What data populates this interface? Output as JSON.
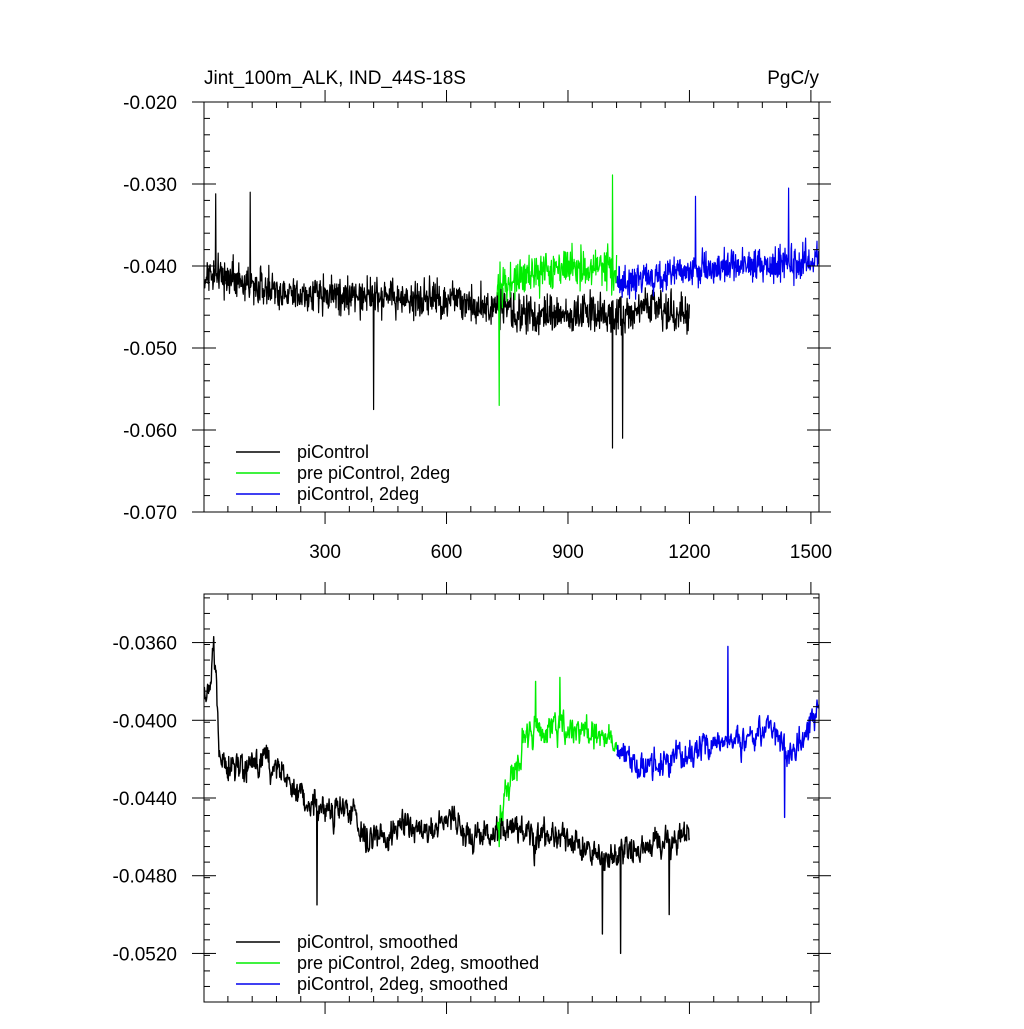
{
  "chart_data": [
    {
      "type": "line",
      "title_left": "Jint_100m_ALK, IND_44S-18S",
      "title_right": "PgC/y",
      "xlim": [
        1,
        1520
      ],
      "ylim": [
        -0.07,
        -0.02
      ],
      "yticks": [
        -0.02,
        -0.03,
        -0.04,
        -0.05,
        -0.06,
        -0.07
      ],
      "ytick_labels": [
        "-0.020",
        "-0.030",
        "-0.040",
        "-0.050",
        "-0.060",
        "-0.070"
      ],
      "xticks": [
        300,
        600,
        900,
        1200,
        1500
      ],
      "xtick_labels": [
        "300",
        "600",
        "900",
        "1200",
        "1500"
      ],
      "legend_position": "bottom-left",
      "series": [
        {
          "name": "piControl",
          "color": "#000000",
          "x_start": 1,
          "x_end": 1200,
          "anchors": [
            [
              1,
              -0.041
            ],
            [
              100,
              -0.042
            ],
            [
              200,
              -0.0435
            ],
            [
              300,
              -0.0435
            ],
            [
              400,
              -0.0435
            ],
            [
              500,
              -0.044
            ],
            [
              600,
              -0.044
            ],
            [
              700,
              -0.045
            ],
            [
              800,
              -0.046
            ],
            [
              900,
              -0.046
            ],
            [
              1000,
              -0.046
            ],
            [
              1100,
              -0.045
            ],
            [
              1200,
              -0.046
            ]
          ],
          "noise_amplitude": 0.0035,
          "min_marks": [
            [
              420,
              -0.0575
            ],
            [
              1010,
              -0.0622
            ],
            [
              1035,
              -0.061
            ]
          ],
          "max_marks": [
            [
              30,
              -0.0312
            ],
            [
              115,
              -0.031
            ]
          ]
        },
        {
          "name": "pre piControl, 2deg",
          "color": "#00ee00",
          "x_start": 725,
          "x_end": 1020,
          "anchors": [
            [
              725,
              -0.043
            ],
            [
              800,
              -0.041
            ],
            [
              900,
              -0.0405
            ],
            [
              1020,
              -0.0405
            ]
          ],
          "noise_amplitude": 0.0038,
          "min_marks": [
            [
              730,
              -0.057
            ]
          ],
          "max_marks": [
            [
              1010,
              -0.0289
            ]
          ]
        },
        {
          "name": "piControl, 2deg",
          "color": "#0000ee",
          "x_start": 1020,
          "x_end": 1520,
          "anchors": [
            [
              1020,
              -0.042
            ],
            [
              1100,
              -0.0415
            ],
            [
              1200,
              -0.0405
            ],
            [
              1300,
              -0.04
            ],
            [
              1400,
              -0.04
            ],
            [
              1520,
              -0.039
            ]
          ],
          "noise_amplitude": 0.0032,
          "min_marks": [],
          "max_marks": [
            [
              1215,
              -0.0315
            ],
            [
              1445,
              -0.0305
            ]
          ]
        }
      ]
    },
    {
      "type": "line",
      "xlim": [
        1,
        1520
      ],
      "ylim": [
        -0.0545,
        -0.0335
      ],
      "yticks": [
        -0.036,
        -0.04,
        -0.044,
        -0.048,
        -0.052
      ],
      "ytick_labels": [
        "-0.0360",
        "-0.0400",
        "-0.0440",
        "-0.0480",
        "-0.0520"
      ],
      "xticks": [
        300,
        600,
        900,
        1200,
        1500
      ],
      "legend_position": "bottom-left",
      "series": [
        {
          "name": "piControl, smoothed",
          "color": "#000000",
          "x_start": 1,
          "x_end": 1200,
          "anchors": [
            [
              1,
              -0.0385
            ],
            [
              15,
              -0.039
            ],
            [
              25,
              -0.0358
            ],
            [
              40,
              -0.042
            ],
            [
              100,
              -0.0425
            ],
            [
              150,
              -0.042
            ],
            [
              200,
              -0.043
            ],
            [
              250,
              -0.044
            ],
            [
              300,
              -0.0445
            ],
            [
              350,
              -0.0445
            ],
            [
              400,
              -0.046
            ],
            [
              450,
              -0.046
            ],
            [
              500,
              -0.045
            ],
            [
              550,
              -0.046
            ],
            [
              600,
              -0.045
            ],
            [
              650,
              -0.046
            ],
            [
              700,
              -0.046
            ],
            [
              750,
              -0.0455
            ],
            [
              800,
              -0.046
            ],
            [
              900,
              -0.046
            ],
            [
              1000,
              -0.047
            ],
            [
              1100,
              -0.0465
            ],
            [
              1200,
              -0.046
            ]
          ],
          "noise_amplitude": 0.0014,
          "min_marks": [
            [
              280,
              -0.0495
            ],
            [
              985,
              -0.051
            ],
            [
              1030,
              -0.052
            ],
            [
              1150,
              -0.05
            ]
          ],
          "max_marks": [
            [
              25,
              -0.0357
            ]
          ]
        },
        {
          "name": "pre piControl, 2deg, smoothed",
          "color": "#00ee00",
          "x_start": 725,
          "x_end": 1020,
          "anchors": [
            [
              725,
              -0.0455
            ],
            [
              760,
              -0.043
            ],
            [
              800,
              -0.0405
            ],
            [
              900,
              -0.0405
            ],
            [
              1000,
              -0.041
            ],
            [
              1020,
              -0.0415
            ]
          ],
          "noise_amplitude": 0.0014,
          "min_marks": [
            [
              730,
              -0.0465
            ]
          ],
          "max_marks": [
            [
              820,
              -0.038
            ],
            [
              880,
              -0.0378
            ]
          ]
        },
        {
          "name": "piControl, 2deg, smoothed",
          "color": "#0000ee",
          "x_start": 1020,
          "x_end": 1520,
          "anchors": [
            [
              1020,
              -0.0415
            ],
            [
              1100,
              -0.0425
            ],
            [
              1200,
              -0.0415
            ],
            [
              1300,
              -0.041
            ],
            [
              1400,
              -0.0405
            ],
            [
              1450,
              -0.042
            ],
            [
              1520,
              -0.0395
            ]
          ],
          "noise_amplitude": 0.0013,
          "min_marks": [
            [
              1435,
              -0.045
            ]
          ],
          "max_marks": [
            [
              1295,
              -0.0362
            ]
          ]
        }
      ]
    }
  ]
}
